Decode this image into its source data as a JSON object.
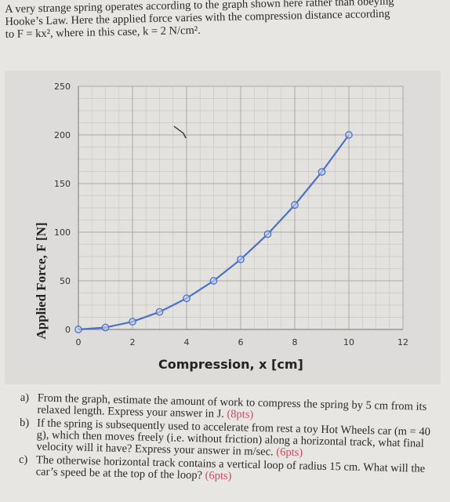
{
  "intro": {
    "line1": "A very strange spring operates according to the graph shown here rather than obeying",
    "line2": "Hooke’s Law.  Here the applied force varies with the compression distance according",
    "line3": "to F = kx², where in this case, k = 2 N/cm²."
  },
  "chart_data": {
    "type": "line",
    "title": "",
    "xlabel": "Compression, x [cm]",
    "ylabel": "Applied Force, F [N]",
    "xlim": [
      0,
      12
    ],
    "ylim": [
      0,
      250
    ],
    "x_ticks": [
      "0",
      "2",
      "4",
      "6",
      "8",
      "10",
      "12"
    ],
    "y_ticks": [
      "0",
      "50",
      "100",
      "150",
      "200",
      "250"
    ],
    "grid": true,
    "series": [
      {
        "x": [
          0,
          1,
          2,
          3,
          4,
          5,
          6,
          7,
          8,
          9,
          10
        ],
        "y": [
          0,
          2,
          8,
          18,
          32,
          50,
          72,
          98,
          128,
          162,
          200
        ]
      }
    ],
    "line_color": "#4a72c4"
  },
  "questions": [
    {
      "label": "a)",
      "text": "From the graph, estimate the amount of work to compress the spring by 5 cm from its relaxed length. Express your answer in J.",
      "points": "(8pts)"
    },
    {
      "label": "b)",
      "text": "If the spring is subsequently used to accelerate from rest a toy Hot Wheels car (m = 40 g), which then moves freely (i.e. without friction) along a horizontal track, what final velocity will it have? Express your answer in m/sec.",
      "points": "(6pts)"
    },
    {
      "label": "c)",
      "text": "The otherwise horizontal track contains a vertical loop of radius 15 cm. What will the car’s speed be at the top of the loop?",
      "points": "(6pts)"
    }
  ]
}
